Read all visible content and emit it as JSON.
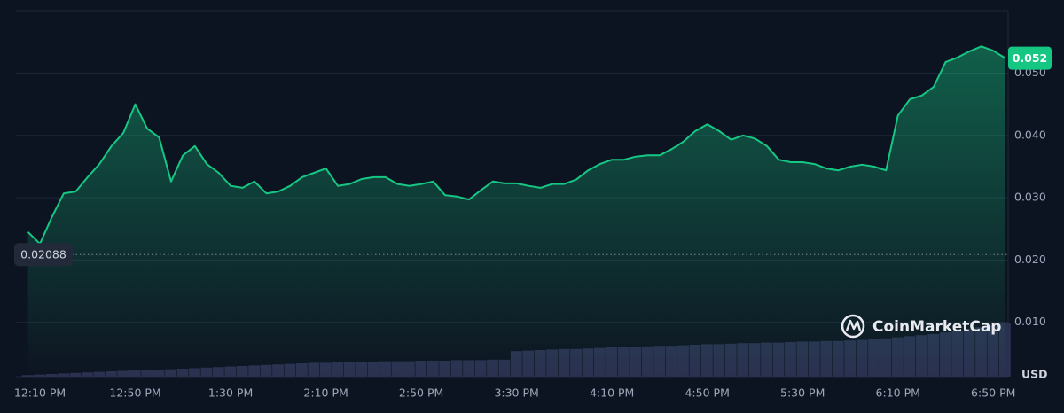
{
  "chart_data": {
    "type": "line",
    "categories": [
      null,
      "12:10 PM",
      null,
      null,
      null,
      null,
      null,
      null,
      null,
      "12:50 PM",
      null,
      null,
      null,
      null,
      null,
      null,
      null,
      "1:30 PM",
      null,
      null,
      null,
      null,
      null,
      null,
      null,
      "2:10 PM",
      null,
      null,
      null,
      null,
      null,
      null,
      null,
      "2:50 PM",
      null,
      null,
      null,
      null,
      null,
      null,
      null,
      "3:30 PM",
      null,
      null,
      null,
      null,
      null,
      null,
      null,
      "4:10 PM",
      null,
      null,
      null,
      null,
      null,
      null,
      null,
      "4:50 PM",
      null,
      null,
      null,
      null,
      null,
      null,
      null,
      "5:30 PM",
      null,
      null,
      null,
      null,
      null,
      null,
      null,
      "6:10 PM",
      null,
      null,
      null,
      null,
      null,
      null,
      null,
      "6:50 PM",
      null
    ],
    "series": [
      {
        "color": "#16c784",
        "values": [
          0.0245,
          0.0226,
          0.0269,
          0.0307,
          0.031,
          0.0333,
          0.0354,
          0.0383,
          0.0404,
          0.045,
          0.0411,
          0.0397,
          0.0326,
          0.0368,
          0.0383,
          0.0354,
          0.034,
          0.0319,
          0.0316,
          0.0326,
          0.0307,
          0.031,
          0.0319,
          0.0333,
          0.034,
          0.0347,
          0.0319,
          0.0322,
          0.033,
          0.0333,
          0.0333,
          0.0322,
          0.0319,
          0.0322,
          0.0326,
          0.0304,
          0.0302,
          0.0297,
          0.0312,
          0.0326,
          0.0323,
          0.0323,
          0.0319,
          0.0316,
          0.0322,
          0.0322,
          0.0329,
          0.0344,
          0.0354,
          0.0361,
          0.0361,
          0.0366,
          0.0368,
          0.0368,
          0.0378,
          0.039,
          0.0407,
          0.0418,
          0.0407,
          0.0393,
          0.04,
          0.0395,
          0.0383,
          0.0361,
          0.0357,
          0.0357,
          0.0354,
          0.0347,
          0.0344,
          0.035,
          0.0353,
          0.035,
          0.0344,
          0.0432,
          0.0458,
          0.0464,
          0.0478,
          0.0518,
          0.0525,
          0.0535,
          0.0543,
          0.0536,
          0.0524
        ]
      },
      {
        "color": "#2a3150",
        "axis": "y2",
        "type": "bar",
        "values": [
          3,
          4,
          5,
          6,
          7,
          8,
          9,
          10,
          11,
          12,
          13,
          13,
          14,
          15,
          16,
          17,
          18,
          19,
          20,
          21,
          22,
          23,
          24,
          25,
          26,
          26,
          27,
          27,
          28,
          28,
          29,
          29,
          29,
          30,
          30,
          30,
          31,
          31,
          31,
          32,
          32,
          48,
          49,
          50,
          51,
          52,
          52,
          53,
          54,
          55,
          55,
          56,
          57,
          58,
          58,
          59,
          60,
          61,
          61,
          62,
          63,
          63,
          64,
          64,
          65,
          66,
          66,
          67,
          67,
          68,
          69,
          70,
          72,
          74,
          76,
          78,
          80,
          83,
          86,
          90,
          93,
          96,
          100
        ]
      }
    ],
    "ylim": [
      0.00128,
      0.06003
    ],
    "yticks": [
      {
        "value": 0.01,
        "label": "0.010"
      },
      {
        "value": 0.02,
        "label": "0.020"
      },
      {
        "value": 0.03,
        "label": "0.030"
      },
      {
        "value": 0.04,
        "label": "0.040"
      },
      {
        "value": 0.05,
        "label": "0.050"
      }
    ],
    "y2lim": [
      0,
      100
    ],
    "grid": true,
    "reference_line": 0.02088,
    "last_price_label": "0.052",
    "watermark": "CoinMarketCap",
    "currency": "USD"
  }
}
